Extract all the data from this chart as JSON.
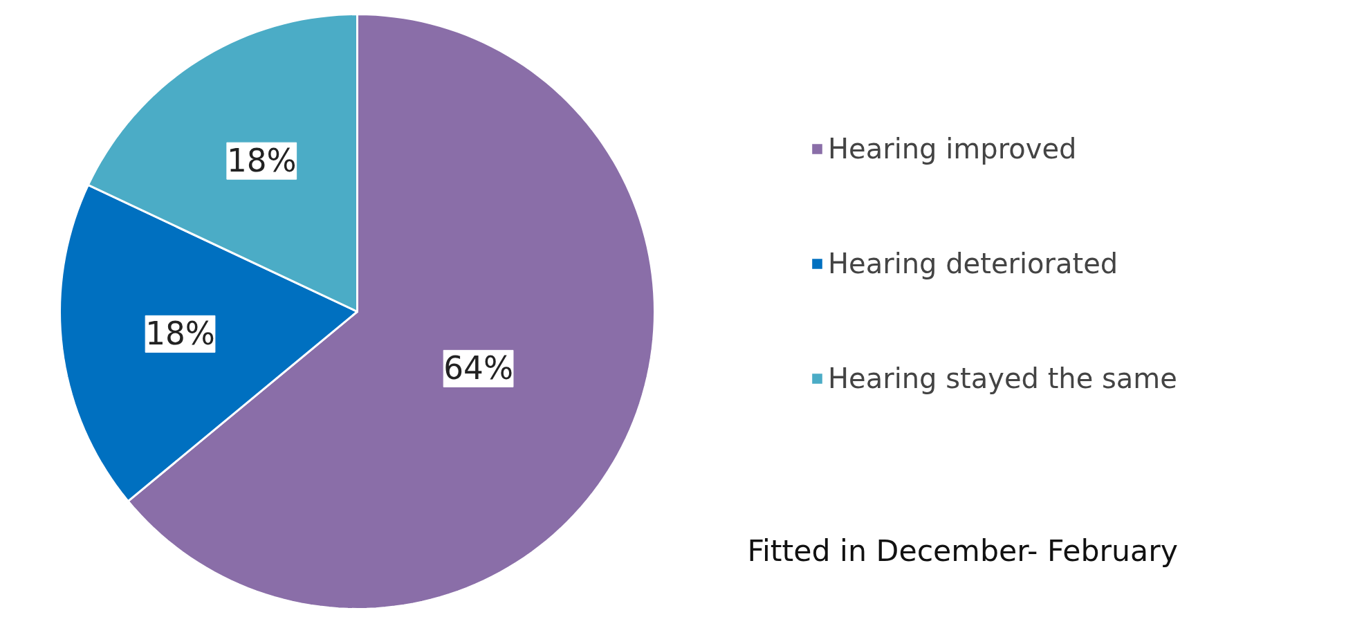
{
  "chart_data": {
    "type": "pie",
    "categories": [
      "Hearing improved",
      "Hearing deteriorated",
      "Hearing stayed the same"
    ],
    "values": [
      64,
      18,
      18
    ],
    "colors": [
      "#8a6ea8",
      "#0070c0",
      "#4bacc6"
    ],
    "value_labels": [
      "64%",
      "18%",
      "18%"
    ],
    "legend": "right",
    "annotations": [
      "Fitted in December- February"
    ]
  }
}
